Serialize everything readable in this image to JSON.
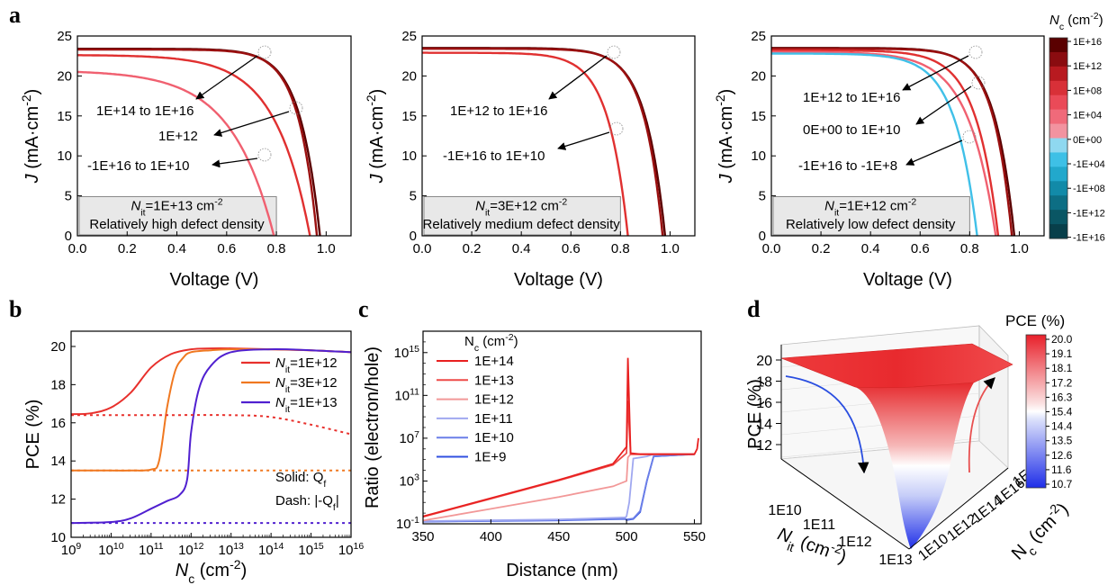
{
  "panel_labels": [
    "a",
    "b",
    "c",
    "d"
  ],
  "chart_data": [
    {
      "id": "a1",
      "type": "line",
      "xlabel": "Voltage (V)",
      "ylabel": "J (mA·cm⁻²)",
      "xlim": [
        0,
        1.1
      ],
      "ylim": [
        0,
        25
      ],
      "xticks": [
        "0.0",
        "0.2",
        "0.4",
        "0.6",
        "0.8",
        "1.0"
      ],
      "yticks": [
        "0",
        "5",
        "10",
        "15",
        "20",
        "25"
      ],
      "box_line1": "Nit=1E+13 cm⁻²",
      "box_line2": "Relatively high defect density",
      "annotations": [
        "1E+14 to 1E+16",
        "1E+12",
        "-1E+16 to 1E+10"
      ],
      "series": [
        {
          "jsc": 23.4,
          "voc": 0.975,
          "knee": 0.08,
          "color": "#5a0000"
        },
        {
          "jsc": 23.3,
          "voc": 0.963,
          "knee": 0.075,
          "color": "#9b1010"
        },
        {
          "jsc": 22.6,
          "voc": 0.935,
          "knee": 0.14,
          "color": "#e03030"
        },
        {
          "jsc": 20.5,
          "voc": 0.79,
          "knee": 0.17,
          "color": "#f06070"
        }
      ]
    },
    {
      "id": "a2",
      "type": "line",
      "xlabel": "Voltage (V)",
      "ylabel": "J (mA·cm⁻²)",
      "xlim": [
        0,
        1.1
      ],
      "ylim": [
        0,
        25
      ],
      "xticks": [
        "0.0",
        "0.2",
        "0.4",
        "0.6",
        "0.8",
        "1.0"
      ],
      "yticks": [
        "0",
        "5",
        "10",
        "15",
        "20",
        "25"
      ],
      "box_line1": "Nit=3E+12 cm⁻²",
      "box_line2": "Relatively medium defect density",
      "annotations": [
        "1E+12 to 1E+16",
        "-1E+16 to 1E+10"
      ],
      "series": [
        {
          "jsc": 23.5,
          "voc": 0.98,
          "knee": 0.08,
          "color": "#5a0000"
        },
        {
          "jsc": 23.4,
          "voc": 0.97,
          "knee": 0.075,
          "color": "#9b1010"
        },
        {
          "jsc": 22.9,
          "voc": 0.83,
          "knee": 0.08,
          "color": "#e03030"
        }
      ]
    },
    {
      "id": "a3",
      "type": "line",
      "xlabel": "Voltage (V)",
      "ylabel": "J (mA·cm⁻²)",
      "xlim": [
        0,
        1.1
      ],
      "ylim": [
        0,
        25
      ],
      "xticks": [
        "0.0",
        "0.2",
        "0.4",
        "0.6",
        "0.8",
        "1.0"
      ],
      "yticks": [
        "0",
        "5",
        "10",
        "15",
        "20",
        "25"
      ],
      "box_line1": "Nit=1E+12 cm⁻²",
      "box_line2": "Relatively low defect density",
      "annotations": [
        "1E+12 to 1E+16",
        "0E+00 to 1E+10",
        "-1E+16 to -1E+8"
      ],
      "series": [
        {
          "jsc": 23.5,
          "voc": 0.98,
          "knee": 0.08,
          "color": "#5a0000"
        },
        {
          "jsc": 23.4,
          "voc": 0.97,
          "knee": 0.075,
          "color": "#9b1010"
        },
        {
          "jsc": 23.2,
          "voc": 0.915,
          "knee": 0.09,
          "color": "#e03030"
        },
        {
          "jsc": 23.0,
          "voc": 0.905,
          "knee": 0.11,
          "color": "#f06070"
        },
        {
          "jsc": 22.8,
          "voc": 0.83,
          "knee": 0.09,
          "color": "#40c0e8"
        }
      ]
    },
    {
      "id": "a-colorbar",
      "type": "colorbar",
      "title": "Nc (cm⁻²)",
      "ticks": [
        "1E+16",
        "1E+12",
        "1E+08",
        "1E+04",
        "0E+00",
        "-1E+04",
        "-1E+08",
        "-1E+12",
        "-1E+16"
      ],
      "colors": [
        "#5a0000",
        "#8a0c10",
        "#b81a20",
        "#d83038",
        "#ea4a58",
        "#f06a7a",
        "#f293a0",
        "#8fd8f0",
        "#3ec0e6",
        "#22a8cc",
        "#128aa8",
        "#0d6e84",
        "#0a5664",
        "#083f4a"
      ]
    },
    {
      "id": "b",
      "type": "line",
      "xlabel": "Nc (cm⁻²)",
      "ylabel": "PCE (%)",
      "xscale": "log",
      "xlim": [
        9,
        16
      ],
      "ylim": [
        10,
        20.8
      ],
      "xticks": [
        9,
        10,
        11,
        12,
        13,
        14,
        15,
        16
      ],
      "yticks": [
        "10",
        "12",
        "14",
        "16",
        "18",
        "20"
      ],
      "legend": [
        "Nit=1E+12",
        "Nit=3E+12",
        "Nit=1E+13"
      ],
      "legend_position": "top-right",
      "note_solid": "Solid: Qf",
      "note_dash": "Dash: |-Qf|",
      "series": [
        {
          "name": "Nit=1E+12",
          "color": "#e8302c",
          "style": "solid",
          "x": [
            9,
            9.5,
            10,
            10.5,
            11,
            11.5,
            12,
            12.5,
            13,
            14,
            15,
            16
          ],
          "y": [
            16.45,
            16.5,
            16.8,
            17.6,
            18.9,
            19.6,
            19.85,
            19.9,
            19.9,
            19.85,
            19.8,
            19.7
          ]
        },
        {
          "name": "Nit=3E+12",
          "color": "#f07820",
          "style": "solid",
          "x": [
            9,
            10,
            10.5,
            11,
            11.2,
            11.4,
            11.6,
            11.8,
            12,
            12.5,
            13,
            14,
            15,
            16
          ],
          "y": [
            13.5,
            13.5,
            13.5,
            13.55,
            14.0,
            16.8,
            18.7,
            19.4,
            19.7,
            19.8,
            19.85,
            19.85,
            19.8,
            19.7
          ]
        },
        {
          "name": "Nit=1E+13",
          "color": "#5020d0",
          "style": "solid",
          "x": [
            9,
            10,
            10.5,
            11,
            11.4,
            11.7,
            11.9,
            12.0,
            12.2,
            12.5,
            13,
            14,
            15,
            16
          ],
          "y": [
            10.75,
            10.8,
            11.0,
            11.5,
            11.9,
            12.2,
            13.0,
            15.5,
            17.8,
            19.0,
            19.7,
            19.85,
            19.8,
            19.7
          ]
        },
        {
          "name": "",
          "color": "#e8302c",
          "style": "dash",
          "x": [
            9,
            11,
            13,
            14,
            15,
            16
          ],
          "y": [
            16.4,
            16.4,
            16.4,
            16.3,
            15.9,
            15.4
          ]
        },
        {
          "name": "",
          "color": "#f07820",
          "style": "dash",
          "x": [
            9,
            16
          ],
          "y": [
            13.5,
            13.5
          ]
        },
        {
          "name": "",
          "color": "#5020d0",
          "style": "dash",
          "x": [
            9,
            16
          ],
          "y": [
            10.75,
            10.75
          ]
        }
      ]
    },
    {
      "id": "c",
      "type": "line",
      "xlabel": "Distance (nm)",
      "ylabel": "Ratio (electron/hole)",
      "yscale": "log",
      "xlim": [
        350,
        555
      ],
      "ylim": [
        -1,
        17
      ],
      "xticks": [
        350,
        400,
        450,
        500,
        550
      ],
      "yticks_exp": [
        -1,
        3,
        7,
        11,
        15
      ],
      "legend_title": "Nc (cm⁻²)",
      "legend": [
        "1E+14",
        "1E+13",
        "1E+12",
        "1E+11",
        "1E+10",
        "1E+9"
      ],
      "legend_position": "top-left",
      "series": [
        {
          "name": "1E+14",
          "color": "#e82020",
          "x": [
            350,
            400,
            450,
            490,
            500,
            501,
            503,
            510,
            520,
            550,
            552,
            553
          ],
          "y": [
            -0.3,
            1.4,
            3.1,
            4.6,
            6.2,
            14.5,
            5.6,
            5.5,
            5.5,
            5.5,
            6.0,
            7.0
          ]
        },
        {
          "name": "1E+13",
          "color": "#ee4a48",
          "x": [
            350,
            400,
            450,
            490,
            500,
            501,
            503,
            510,
            520,
            550
          ],
          "y": [
            -0.35,
            1.35,
            3.05,
            4.5,
            5.6,
            10.5,
            5.5,
            5.5,
            5.5,
            5.5
          ]
        },
        {
          "name": "1E+12",
          "color": "#f29898",
          "x": [
            350,
            400,
            450,
            490,
            500,
            501,
            503,
            520,
            550
          ],
          "y": [
            -0.7,
            0.4,
            1.5,
            2.5,
            3.0,
            5.2,
            5.5,
            5.5,
            5.5
          ]
        },
        {
          "name": "1E+11",
          "color": "#a0a8f0",
          "x": [
            350,
            450,
            499,
            500,
            502,
            505,
            510,
            515,
            520,
            550
          ],
          "y": [
            -0.75,
            -0.6,
            -0.4,
            -0.3,
            1.0,
            5.1,
            5.2,
            5.3,
            5.5,
            5.5
          ]
        },
        {
          "name": "1E+10",
          "color": "#6b7fe8",
          "x": [
            350,
            450,
            499,
            500,
            505,
            510,
            515,
            520,
            550
          ],
          "y": [
            -0.78,
            -0.65,
            -0.5,
            -0.6,
            -0.5,
            0.2,
            3.0,
            5.3,
            5.5
          ]
        },
        {
          "name": "1E+9",
          "color": "#3050e0",
          "x": [
            350,
            450,
            499,
            500,
            505,
            510,
            515,
            520,
            550
          ],
          "y": [
            -0.8,
            -0.68,
            -0.55,
            -0.65,
            -0.55,
            0.1,
            3.0,
            5.3,
            5.5
          ]
        }
      ]
    },
    {
      "id": "d",
      "type": "heatmap",
      "zlabel": "PCE (%)",
      "xlabel": "Nit (cm⁻²)",
      "ylabel": "Nc (cm⁻²)",
      "zticks": [
        "12",
        "14",
        "16",
        "18",
        "20"
      ],
      "xticks": [
        "1E10",
        "1E11",
        "1E12",
        "1E13"
      ],
      "yticks": [
        "1E10",
        "1E12",
        "1E14",
        "1E16",
        "1E18"
      ],
      "colorbar_title": "PCE (%)",
      "colorbar_ticks": [
        "20.0",
        "19.1",
        "18.1",
        "17.2",
        "16.3",
        "15.4",
        "14.4",
        "13.5",
        "12.6",
        "11.6",
        "10.7"
      ],
      "zrange": [
        10.7,
        20.0
      ]
    }
  ]
}
